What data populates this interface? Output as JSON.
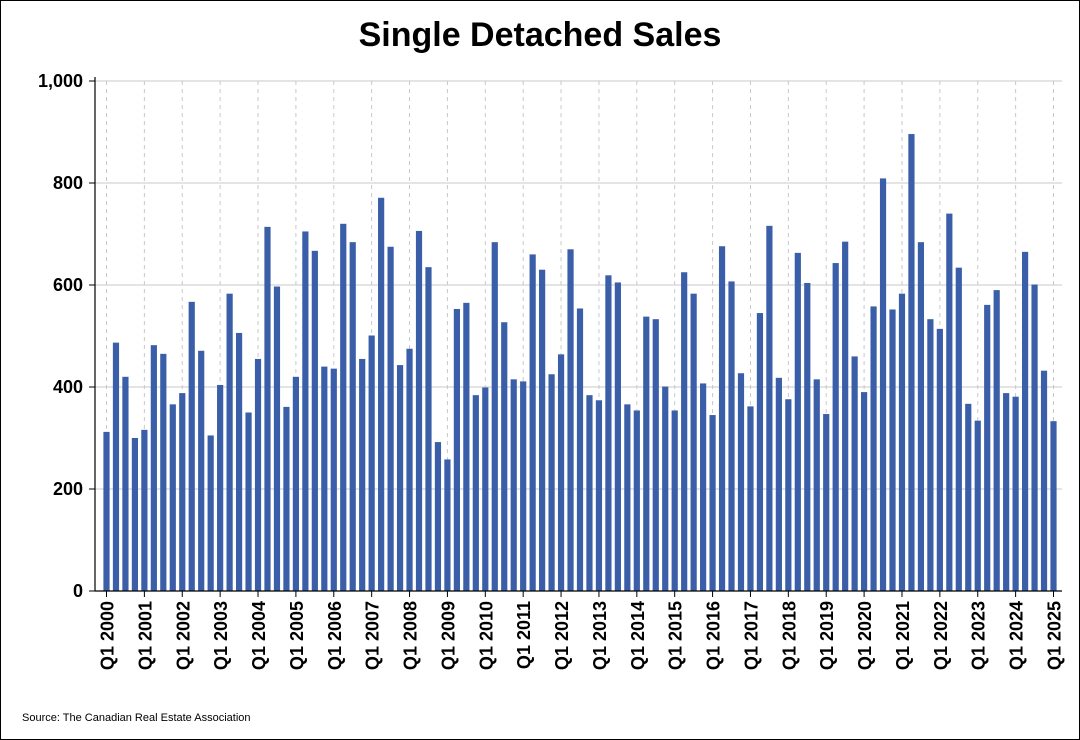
{
  "title": "Single Detached Sales",
  "source": "Source: The Canadian Real Estate Association",
  "colors": {
    "bar": "#3a5fa8",
    "gridline": "#c8c8c8"
  },
  "chart_data": {
    "type": "bar",
    "title": "Single Detached Sales",
    "xlabel": "",
    "ylabel": "",
    "ylim": [
      0,
      1000
    ],
    "yticks": [
      0,
      200,
      400,
      600,
      800,
      1000
    ],
    "ytick_labels": [
      "0",
      "200",
      "400",
      "600",
      "800",
      "1,000"
    ],
    "grid": true,
    "xtick_labels": [
      "Q1 2000",
      "Q1 2001",
      "Q1 2002",
      "Q1 2003",
      "Q1 2004",
      "Q1 2005",
      "Q1 2006",
      "Q1 2007",
      "Q1 2008",
      "Q1 2009",
      "Q1 2010",
      "Q1 2011",
      "Q1 2012",
      "Q1 2013",
      "Q1 2014",
      "Q1 2015",
      "Q1 2016",
      "Q1 2017",
      "Q1 2018",
      "Q1 2019",
      "Q1 2020",
      "Q1 2021",
      "Q1 2022",
      "Q1 2023",
      "Q1 2024",
      "Q1 2025"
    ],
    "categories": [
      "Q1 2000",
      "Q2 2000",
      "Q3 2000",
      "Q4 2000",
      "Q1 2001",
      "Q2 2001",
      "Q3 2001",
      "Q4 2001",
      "Q1 2002",
      "Q2 2002",
      "Q3 2002",
      "Q4 2002",
      "Q1 2003",
      "Q2 2003",
      "Q3 2003",
      "Q4 2003",
      "Q1 2004",
      "Q2 2004",
      "Q3 2004",
      "Q4 2004",
      "Q1 2005",
      "Q2 2005",
      "Q3 2005",
      "Q4 2005",
      "Q1 2006",
      "Q2 2006",
      "Q3 2006",
      "Q4 2006",
      "Q1 2007",
      "Q2 2007",
      "Q3 2007",
      "Q4 2007",
      "Q1 2008",
      "Q2 2008",
      "Q3 2008",
      "Q4 2008",
      "Q1 2009",
      "Q2 2009",
      "Q3 2009",
      "Q4 2009",
      "Q1 2010",
      "Q2 2010",
      "Q3 2010",
      "Q4 2010",
      "Q1 2011",
      "Q2 2011",
      "Q3 2011",
      "Q4 2011",
      "Q1 2012",
      "Q2 2012",
      "Q3 2012",
      "Q4 2012",
      "Q1 2013",
      "Q2 2013",
      "Q3 2013",
      "Q4 2013",
      "Q1 2014",
      "Q2 2014",
      "Q3 2014",
      "Q4 2014",
      "Q1 2015",
      "Q2 2015",
      "Q3 2015",
      "Q4 2015",
      "Q1 2016",
      "Q2 2016",
      "Q3 2016",
      "Q4 2016",
      "Q1 2017",
      "Q2 2017",
      "Q3 2017",
      "Q4 2017",
      "Q1 2018",
      "Q2 2018",
      "Q3 2018",
      "Q4 2018",
      "Q1 2019",
      "Q2 2019",
      "Q3 2019",
      "Q4 2019",
      "Q1 2020",
      "Q2 2020",
      "Q3 2020",
      "Q4 2020",
      "Q1 2021",
      "Q2 2021",
      "Q3 2021",
      "Q4 2021",
      "Q1 2022",
      "Q2 2022",
      "Q3 2022",
      "Q4 2022",
      "Q1 2023",
      "Q2 2023",
      "Q3 2023",
      "Q4 2023",
      "Q1 2024",
      "Q2 2024",
      "Q3 2024",
      "Q4 2024",
      "Q1 2025"
    ],
    "values": [
      312,
      487,
      420,
      300,
      316,
      482,
      465,
      366,
      388,
      567,
      471,
      305,
      404,
      583,
      506,
      350,
      455,
      714,
      597,
      361,
      420,
      705,
      667,
      440,
      436,
      720,
      684,
      455,
      501,
      771,
      675,
      443,
      475,
      706,
      635,
      292,
      258,
      553,
      565,
      384,
      399,
      684,
      527,
      415,
      411,
      660,
      630,
      425,
      464,
      670,
      554,
      384,
      374,
      619,
      605,
      366,
      354,
      538,
      533,
      401,
      354,
      625,
      583,
      407,
      345,
      676,
      607,
      427,
      362,
      545,
      716,
      418,
      376,
      663,
      604,
      415,
      347,
      643,
      685,
      460,
      390,
      558,
      809,
      552,
      583,
      896,
      684,
      533,
      514,
      740,
      634,
      367,
      334,
      561,
      590,
      388,
      381,
      665,
      601,
      432,
      333
    ]
  }
}
